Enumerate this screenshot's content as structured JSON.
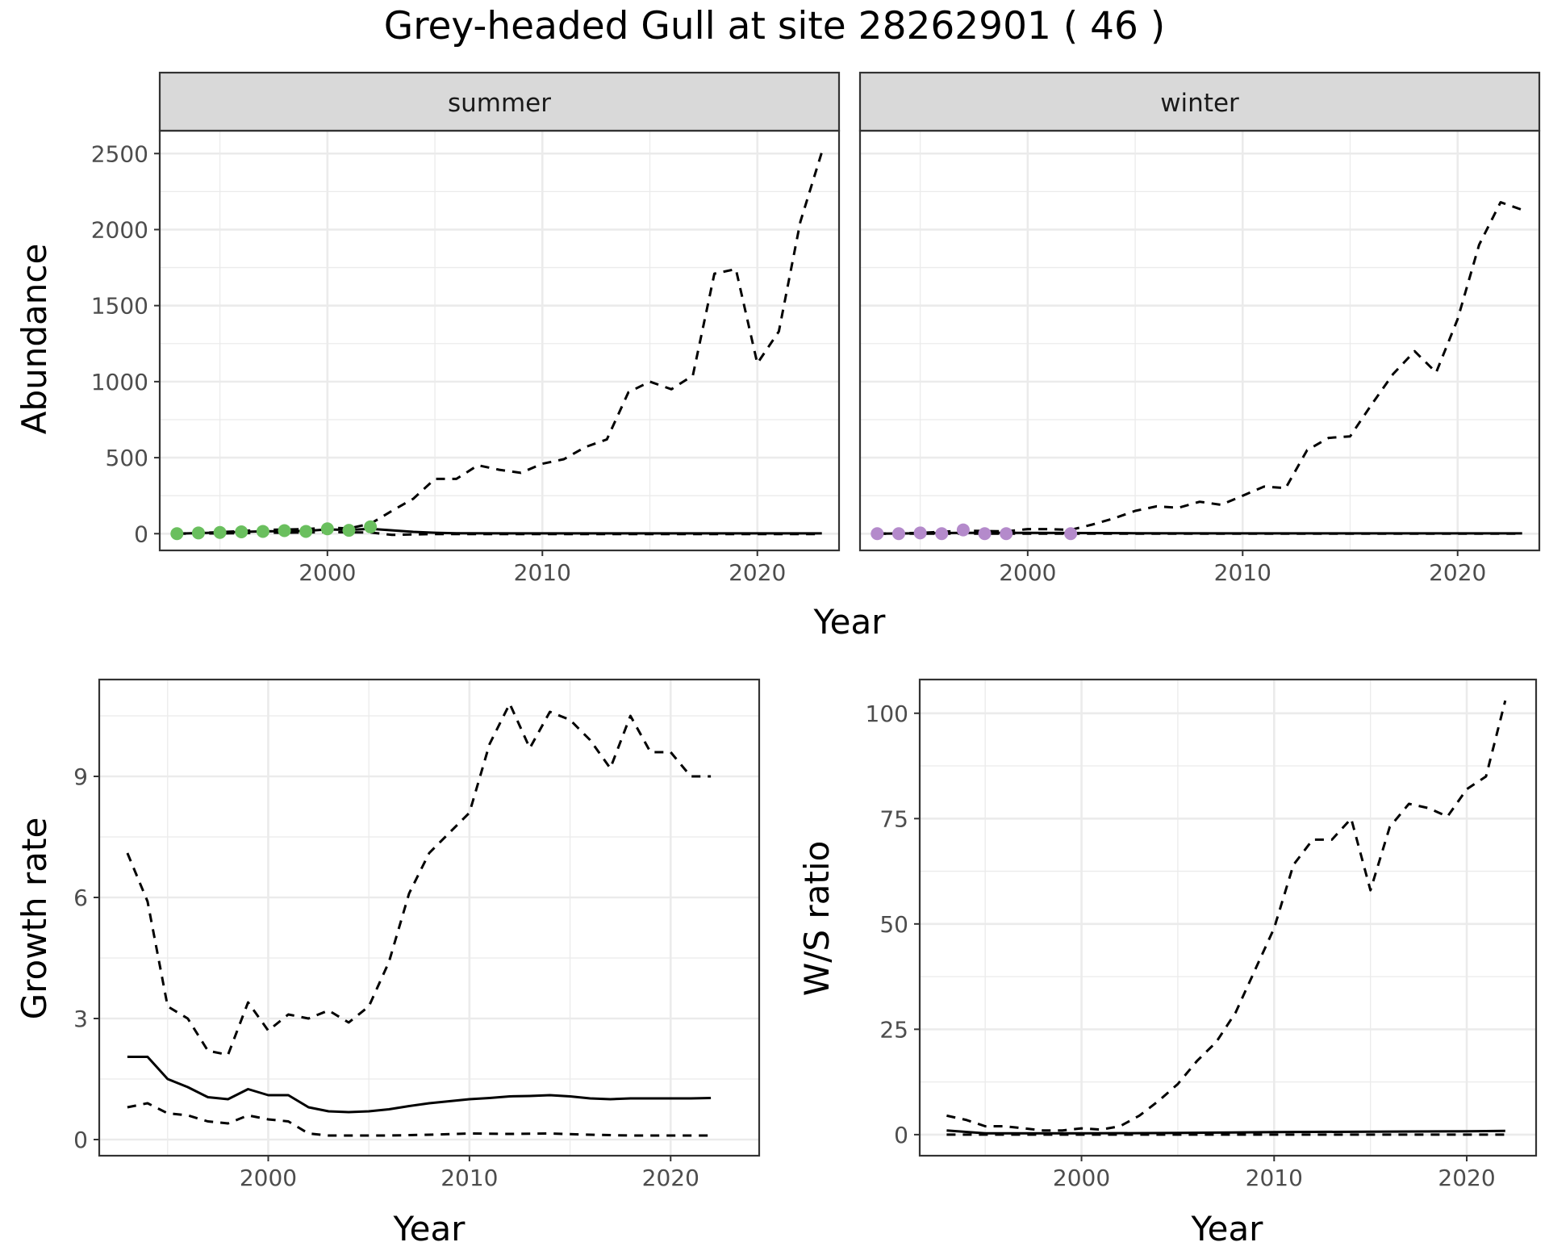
{
  "title": "Grey-headed Gull at site 28262901 ( 46 )",
  "colors": {
    "summer_points": "#6ABF5E",
    "winter_points": "#B48ACB",
    "lines": "#000000",
    "strip_bg": "#d9d9d9",
    "grid": "#ebebeb"
  },
  "chart_data": [
    {
      "type": "line",
      "panel": "summer",
      "strip_label": "summer",
      "xlabel": "Year",
      "ylabel": "Abundance",
      "xlim": [
        1992.2,
        2023.8
      ],
      "ylim": [
        -110,
        2650
      ],
      "x_ticks": [
        2000,
        2010,
        2020
      ],
      "y_ticks": [
        0,
        500,
        1000,
        1500,
        2000,
        2500
      ],
      "grid": true,
      "observed": {
        "x": [
          1993,
          1994,
          1995,
          1996,
          1997,
          1998,
          1999,
          2000,
          2001,
          2002
        ],
        "y": [
          0,
          5,
          8,
          12,
          15,
          20,
          15,
          32,
          22,
          45
        ],
        "color": "#6ABF5E"
      },
      "series": [
        {
          "style": "solid",
          "x": [
            1993,
            1995,
            1997,
            1999,
            2000,
            2001,
            2002,
            2003,
            2004,
            2005,
            2006,
            2010,
            2015,
            2020,
            2023
          ],
          "y": [
            0,
            8,
            15,
            18,
            28,
            25,
            32,
            22,
            12,
            6,
            3,
            2,
            2,
            2,
            2
          ]
        },
        {
          "style": "dashed",
          "x": [
            1993,
            1995,
            1997,
            1999,
            2000,
            2001,
            2002,
            2003,
            2004,
            2005,
            2006,
            2007,
            2008,
            2009,
            2010,
            2011,
            2012,
            2013,
            2014,
            2015,
            2016,
            2017,
            2018,
            2019,
            2020,
            2021,
            2022,
            2023
          ],
          "y": [
            0,
            10,
            25,
            30,
            40,
            35,
            65,
            150,
            230,
            360,
            360,
            450,
            420,
            400,
            460,
            490,
            570,
            620,
            930,
            1000,
            950,
            1040,
            1710,
            1740,
            1120,
            1330,
            2050,
            2510
          ]
        },
        {
          "style": "dashed",
          "x": [
            1993,
            1995,
            1997,
            1999,
            2000,
            2002,
            2003,
            2004,
            2005,
            2006,
            2010,
            2015,
            2020,
            2023
          ],
          "y": [
            0,
            2,
            5,
            8,
            10,
            8,
            -8,
            -5,
            -3,
            -2,
            -2,
            -2,
            -2,
            -2
          ]
        }
      ]
    },
    {
      "type": "line",
      "panel": "winter",
      "strip_label": "winter",
      "xlabel": "Year",
      "ylabel": "Abundance",
      "xlim": [
        1992.2,
        2023.8
      ],
      "ylim": [
        -110,
        2650
      ],
      "x_ticks": [
        2000,
        2010,
        2020
      ],
      "y_ticks": [
        0,
        500,
        1000,
        1500,
        2000,
        2500
      ],
      "grid": true,
      "observed": {
        "x": [
          1993,
          1994,
          1995,
          1996,
          1997,
          1998,
          1999,
          2002
        ],
        "y": [
          0,
          0,
          5,
          0,
          25,
          0,
          0,
          0
        ],
        "color": "#B48ACB"
      },
      "series": [
        {
          "style": "solid",
          "x": [
            1993,
            1997,
            2000,
            2005,
            2010,
            2015,
            2020,
            2023
          ],
          "y": [
            0,
            5,
            5,
            3,
            2,
            2,
            2,
            2
          ]
        },
        {
          "style": "dashed",
          "x": [
            1993,
            1995,
            1997,
            1999,
            2000,
            2001,
            2002,
            2003,
            2004,
            2005,
            2006,
            2007,
            2008,
            2009,
            2010,
            2011,
            2012,
            2013,
            2014,
            2015,
            2016,
            2017,
            2018,
            2019,
            2020,
            2021,
            2022,
            2023
          ],
          "y": [
            0,
            5,
            20,
            15,
            30,
            30,
            25,
            60,
            100,
            150,
            180,
            170,
            210,
            190,
            250,
            310,
            300,
            550,
            630,
            640,
            850,
            1050,
            1200,
            1060,
            1410,
            1900,
            2180,
            2130
          ]
        },
        {
          "style": "dashed",
          "x": [
            1993,
            1997,
            2000,
            2005,
            2010,
            2015,
            2020,
            2023
          ],
          "y": [
            0,
            0,
            0,
            0,
            0,
            0,
            0,
            0
          ]
        }
      ]
    },
    {
      "type": "line",
      "panel": "growth",
      "xlabel": "Year",
      "ylabel": "Growth rate",
      "xlim": [
        1991.6,
        2024.4
      ],
      "ylim": [
        -0.4,
        11.4
      ],
      "x_ticks": [
        2000,
        2010,
        2020
      ],
      "y_ticks": [
        0,
        3,
        6,
        9
      ],
      "grid": true,
      "series": [
        {
          "style": "solid",
          "x": [
            1993,
            1994,
            1995,
            1996,
            1997,
            1998,
            1999,
            2000,
            2001,
            2002,
            2003,
            2004,
            2005,
            2006,
            2007,
            2008,
            2009,
            2010,
            2011,
            2012,
            2013,
            2014,
            2015,
            2016,
            2017,
            2018,
            2019,
            2020,
            2021,
            2022
          ],
          "y": [
            2.05,
            2.05,
            1.5,
            1.3,
            1.05,
            1.0,
            1.25,
            1.1,
            1.1,
            0.8,
            0.7,
            0.68,
            0.7,
            0.75,
            0.83,
            0.9,
            0.95,
            1.0,
            1.03,
            1.07,
            1.08,
            1.1,
            1.07,
            1.02,
            1.0,
            1.02,
            1.02,
            1.02,
            1.02,
            1.03
          ]
        },
        {
          "style": "dashed",
          "x": [
            1993,
            1994,
            1995,
            1996,
            1997,
            1998,
            1999,
            2000,
            2001,
            2002,
            2003,
            2004,
            2005,
            2006,
            2007,
            2008,
            2009,
            2010,
            2011,
            2012,
            2013,
            2014,
            2015,
            2016,
            2017,
            2018,
            2019,
            2020,
            2021,
            2022
          ],
          "y": [
            7.1,
            5.9,
            3.3,
            3.0,
            2.2,
            2.1,
            3.4,
            2.7,
            3.1,
            3.0,
            3.2,
            2.9,
            3.3,
            4.4,
            6.1,
            7.1,
            7.6,
            8.1,
            9.8,
            10.8,
            9.7,
            10.6,
            10.4,
            9.9,
            9.2,
            10.5,
            9.6,
            9.6,
            9.0,
            9.0
          ]
        },
        {
          "style": "dashed",
          "x": [
            1993,
            1994,
            1995,
            1996,
            1997,
            1998,
            1999,
            2000,
            2001,
            2002,
            2003,
            2004,
            2005,
            2006,
            2008,
            2010,
            2012,
            2014,
            2016,
            2018,
            2020,
            2022
          ],
          "y": [
            0.8,
            0.9,
            0.65,
            0.6,
            0.45,
            0.4,
            0.6,
            0.5,
            0.45,
            0.15,
            0.1,
            0.1,
            0.1,
            0.1,
            0.12,
            0.15,
            0.14,
            0.15,
            0.12,
            0.1,
            0.1,
            0.1
          ]
        }
      ]
    },
    {
      "type": "line",
      "panel": "ratio",
      "xlabel": "Year",
      "ylabel": "W/S ratio",
      "xlim": [
        1991.6,
        2023.6
      ],
      "ylim": [
        -5,
        108
      ],
      "x_ticks": [
        2000,
        2010,
        2020
      ],
      "y_ticks": [
        0,
        25,
        50,
        75,
        100
      ],
      "grid": true,
      "series": [
        {
          "style": "solid",
          "x": [
            1993,
            1995,
            1997,
            2000,
            2005,
            2010,
            2015,
            2020,
            2022
          ],
          "y": [
            1.0,
            0.3,
            0.3,
            0.3,
            0.4,
            0.6,
            0.7,
            0.8,
            0.9
          ]
        },
        {
          "style": "dashed",
          "x": [
            1993,
            1994,
            1995,
            1996,
            1997,
            1998,
            1999,
            2000,
            2001,
            2002,
            2003,
            2004,
            2005,
            2006,
            2007,
            2008,
            2009,
            2010,
            2011,
            2012,
            2013,
            2014,
            2015,
            2016,
            2017,
            2018,
            2019,
            2020,
            2021,
            2022
          ],
          "y": [
            4.5,
            3.5,
            2.0,
            2.0,
            1.5,
            1.0,
            1.0,
            1.5,
            1.2,
            2.0,
            4.5,
            8.0,
            12.0,
            17.5,
            22.0,
            29.0,
            39.0,
            49.0,
            64.0,
            70.0,
            70.0,
            75.0,
            58.0,
            73.0,
            78.5,
            77.5,
            75.5,
            82.0,
            85.0,
            103.0
          ]
        },
        {
          "style": "dashed",
          "x": [
            1993,
            1995,
            1997,
            2000,
            2005,
            2010,
            2015,
            2020,
            2022
          ],
          "y": [
            0,
            0,
            0,
            0,
            0,
            0,
            0,
            0,
            0
          ]
        }
      ]
    }
  ]
}
